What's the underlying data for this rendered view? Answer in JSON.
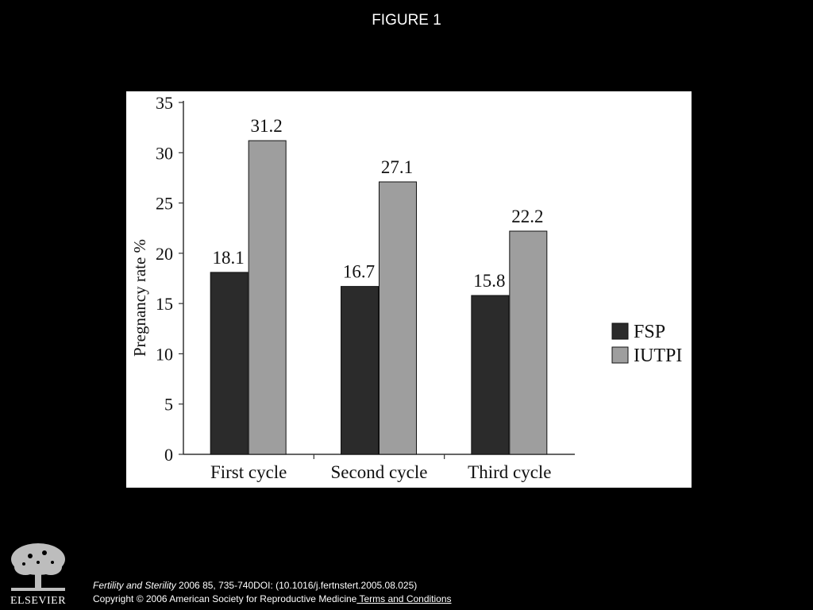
{
  "slide": {
    "title": "FIGURE 1"
  },
  "footer": {
    "journal": "Fertility and Sterility",
    "reference": " 2006 85, 735-740DOI: (10.1016/j.fertnstert.2005.08.025)",
    "copyright": "Copyright © 2006 American Society for Reproductive Medicine",
    "terms_link": " Terms and Conditions",
    "publisher_logo_text": "ELSEVIER"
  },
  "chart_data": {
    "type": "bar",
    "title": "",
    "xlabel": "",
    "ylabel": "Pregnancy rate %",
    "categories": [
      "First cycle",
      "Second cycle",
      "Third cycle"
    ],
    "series": [
      {
        "name": "FSP",
        "values": [
          18.1,
          16.7,
          15.8
        ],
        "color": "#2b2b2b"
      },
      {
        "name": "IUTPI",
        "values": [
          31.2,
          27.1,
          22.2
        ],
        "color": "#9e9e9e"
      }
    ],
    "ylim": [
      0,
      35
    ],
    "yticks": [
      "0",
      "5",
      "10",
      "15",
      "20",
      "25",
      "30",
      "35"
    ],
    "data_labels": [
      [
        "18.1",
        "16.7",
        "15.8"
      ],
      [
        "31.2",
        "27.1",
        "22.2"
      ]
    ],
    "grid": false,
    "legend_position": "right"
  }
}
